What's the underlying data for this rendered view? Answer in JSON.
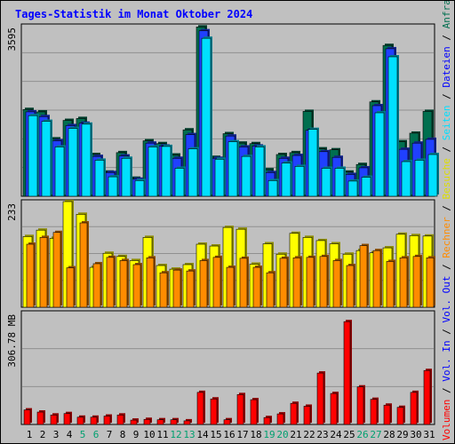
{
  "chart_data": {
    "type": "bar",
    "title": "Tages-Statistik im Monat Oktober 2024",
    "days": [
      {
        "label": "1",
        "weekend": false
      },
      {
        "label": "2",
        "weekend": false
      },
      {
        "label": "3",
        "weekend": false
      },
      {
        "label": "4",
        "weekend": false
      },
      {
        "label": "5",
        "weekend": true
      },
      {
        "label": "6",
        "weekend": true
      },
      {
        "label": "7",
        "weekend": false
      },
      {
        "label": "8",
        "weekend": false
      },
      {
        "label": "9",
        "weekend": false
      },
      {
        "label": "10",
        "weekend": false
      },
      {
        "label": "11",
        "weekend": false
      },
      {
        "label": "12",
        "weekend": true
      },
      {
        "label": "13",
        "weekend": true
      },
      {
        "label": "14",
        "weekend": false
      },
      {
        "label": "15",
        "weekend": false
      },
      {
        "label": "16",
        "weekend": false
      },
      {
        "label": "17",
        "weekend": false
      },
      {
        "label": "18",
        "weekend": false
      },
      {
        "label": "19",
        "weekend": true
      },
      {
        "label": "20",
        "weekend": true
      },
      {
        "label": "21",
        "weekend": false
      },
      {
        "label": "22",
        "weekend": false
      },
      {
        "label": "23",
        "weekend": false
      },
      {
        "label": "24",
        "weekend": false
      },
      {
        "label": "25",
        "weekend": false
      },
      {
        "label": "26",
        "weekend": true
      },
      {
        "label": "27",
        "weekend": true
      },
      {
        "label": "28",
        "weekend": false
      },
      {
        "label": "29",
        "weekend": false
      },
      {
        "label": "30",
        "weekend": false
      },
      {
        "label": "31",
        "weekend": false
      }
    ],
    "panels": [
      {
        "id": "requests",
        "ymax": 3595,
        "ymax_label": "3595",
        "series": [
          {
            "name": "Anfragen",
            "color": "#006f4f",
            "values": [
              1830,
              1780,
              1210,
              1600,
              1640,
              880,
              510,
              920,
              380,
              1170,
              1110,
              870,
              1400,
              3570,
              820,
              1320,
              1120,
              1110,
              560,
              880,
              920,
              1790,
              1000,
              980,
              510,
              670,
              1990,
              3180,
              1150,
              1330,
              1790
            ]
          },
          {
            "name": "Dateien",
            "color": "#2040ff",
            "values": [
              1780,
              1680,
              1170,
              1490,
              1540,
              840,
              500,
              850,
              360,
              1120,
              1060,
              800,
              1300,
              3490,
              800,
              1270,
              1040,
              1060,
              500,
              800,
              860,
              1390,
              940,
              820,
              460,
              600,
              1910,
              3110,
              990,
              1120,
              1200
            ]
          },
          {
            "name": "Seiten",
            "color": "#00e0ff",
            "values": [
              1700,
              1580,
              1040,
              1430,
              1520,
              760,
              410,
              800,
              330,
              1040,
              1050,
              590,
              1000,
              3330,
              780,
              1150,
              840,
              1040,
              330,
              700,
              630,
              1410,
              590,
              590,
              320,
              400,
              1760,
              2940,
              730,
              760,
              880
            ]
          }
        ]
      },
      {
        "id": "visits",
        "ymax": 233,
        "ymax_label": "233",
        "series": [
          {
            "name": "Besuche",
            "color": "#ffff00",
            "values": [
              156,
              170,
              152,
              233,
              205,
              88,
              119,
              112,
              103,
              154,
              92,
              84,
              94,
              139,
              135,
              176,
              172,
              95,
              140,
              117,
              163,
              154,
              147,
              140,
              117,
              125,
              120,
              131,
              161,
              158,
              157
            ]
          },
          {
            "name": "Rechner",
            "color": "#ff8c00",
            "values": [
              139,
              154,
              165,
              87,
              186,
              96,
              110,
              103,
              94,
              109,
              76,
              82,
              80,
              103,
              110,
              88,
              108,
              88,
              76,
              108,
              109,
              110,
              112,
              103,
              92,
              136,
              125,
              101,
              109,
              112,
              109
            ]
          }
        ]
      },
      {
        "id": "volume",
        "ymax": 306.78,
        "ymax_label": "306.78 MB",
        "series": [
          {
            "name": "Volumen",
            "color": "#ff0000",
            "values": [
              40,
              34,
              26,
              30,
              20,
              20,
              23,
              26,
              12,
              14,
              13,
              13,
              10,
              88,
              70,
              13,
              82,
              68,
              19,
              29,
              58,
              50,
              141,
              85,
              282,
              103,
              69,
              53,
              47,
              88,
              148
            ]
          }
        ]
      }
    ],
    "right_labels": [
      {
        "text": "Anfragen",
        "color": "#006f4f"
      },
      {
        "text": "Dateien",
        "color": "#0000ff"
      },
      {
        "text": "Seiten",
        "color": "#00e0ff"
      },
      {
        "text": "Besuche",
        "color": "#dddd00"
      },
      {
        "text": "Rechner",
        "color": "#ff8c00"
      },
      {
        "text": "Vol. Out",
        "color": "#0000ff"
      },
      {
        "text": "Vol. In",
        "color": "#0000ff"
      },
      {
        "text": "Volumen",
        "color": "#ff0000"
      }
    ],
    "label_sep": " / ",
    "grid": true
  }
}
